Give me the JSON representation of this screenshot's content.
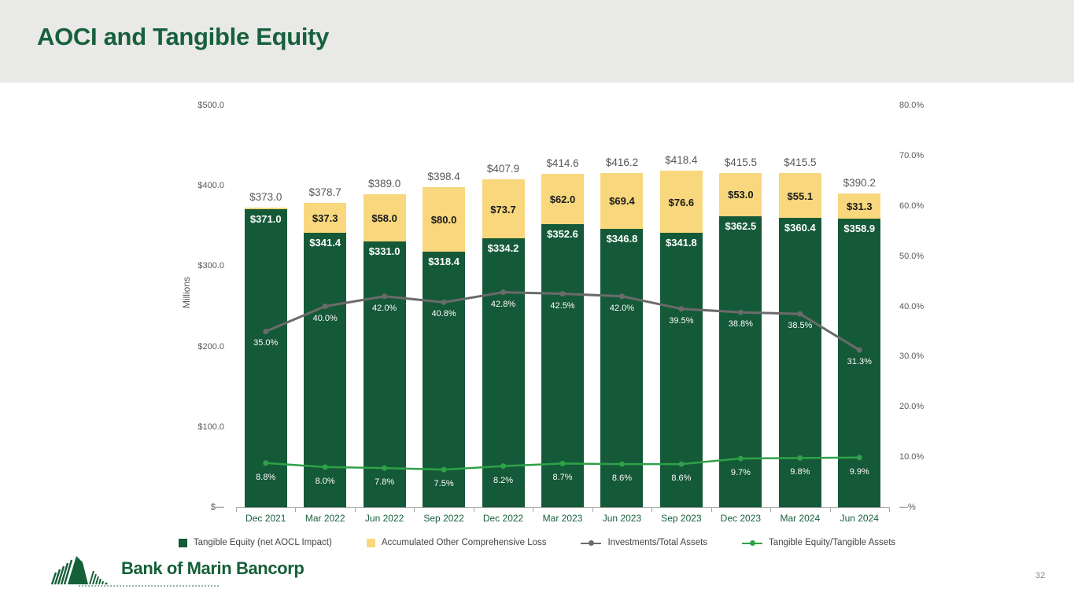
{
  "header": {
    "title": "AOCI and Tangible Equity"
  },
  "footer": {
    "logo_text": "Bank of Marin Bancorp",
    "page_number": "32"
  },
  "colors": {
    "header_bg": "#e9e9e7",
    "title_green": "#17603c",
    "bar_green": "#155a38",
    "bar_yellow": "#f8d77d",
    "line_gray": "#6b6b6b",
    "line_green": "#2fa148",
    "axis_text": "#595959",
    "x_label_green": "#17603c"
  },
  "chart_data": {
    "type": "combo-stacked-bar-with-lines",
    "title": "AOCI and Tangible Equity",
    "categories": [
      "Dec 2021",
      "Mar 2022",
      "Jun 2022",
      "Sep 2022",
      "Dec 2022",
      "Mar 2023",
      "Jun 2023",
      "Sep 2023",
      "Dec 2023",
      "Mar 2024",
      "Jun 2024"
    ],
    "bar_series": [
      {
        "name": "Tangible Equity (net AOCL Impact)",
        "axis": "left",
        "color": "#155a38",
        "label_color": "#ffffff",
        "values": [
          371.0,
          341.4,
          331.0,
          318.4,
          334.2,
          352.6,
          346.8,
          341.8,
          362.5,
          360.4,
          358.9
        ],
        "labels": [
          "$371.0",
          "$341.4",
          "$331.0",
          "$318.4",
          "$334.2",
          "$352.6",
          "$346.8",
          "$341.8",
          "$362.5",
          "$360.4",
          "$358.9"
        ]
      },
      {
        "name": "Accumulated Other Comprehensive Loss",
        "axis": "left",
        "color": "#f8d77d",
        "label_color": "#1a1a1a",
        "values": [
          2.0,
          37.3,
          58.0,
          80.0,
          73.7,
          62.0,
          69.4,
          76.6,
          53.0,
          55.1,
          31.3
        ],
        "labels": [
          "",
          "$37.3",
          "$58.0",
          "$80.0",
          "$73.7",
          "$62.0",
          "$69.4",
          "$76.6",
          "$53.0",
          "$55.1",
          "$31.3"
        ]
      }
    ],
    "totals_labels": [
      "$373.0",
      "$378.7",
      "$389.0",
      "$398.4",
      "$407.9",
      "$414.6",
      "$416.2",
      "$418.4",
      "$415.5",
      "$415.5",
      "$390.2"
    ],
    "line_series": [
      {
        "name": "Investments/Total Assets",
        "axis": "right",
        "color": "#6b6b6b",
        "values": [
          35.0,
          40.0,
          42.0,
          40.8,
          42.8,
          42.5,
          42.0,
          39.5,
          38.8,
          38.5,
          31.3
        ],
        "labels": [
          "35.0%",
          "40.0%",
          "42.0%",
          "40.8%",
          "42.8%",
          "42.5%",
          "42.0%",
          "39.5%",
          "38.8%",
          "38.5%",
          "31.3%"
        ]
      },
      {
        "name": "Tangible Equity/Tangible Assets",
        "axis": "right",
        "color": "#2fa148",
        "values": [
          8.8,
          8.0,
          7.8,
          7.5,
          8.2,
          8.7,
          8.6,
          8.6,
          9.7,
          9.8,
          9.9
        ],
        "labels": [
          "8.8%",
          "8.0%",
          "7.8%",
          "7.5%",
          "8.2%",
          "8.7%",
          "8.6%",
          "8.6%",
          "9.7%",
          "9.8%",
          "9.9%"
        ]
      }
    ],
    "left_axis": {
      "title": "Millions",
      "max": 500,
      "ticks": [
        "$500.0",
        "$400.0",
        "$300.0",
        "$200.0",
        "$100.0",
        "$—"
      ]
    },
    "right_axis": {
      "max": 80,
      "ticks": [
        "80.0%",
        "70.0%",
        "60.0%",
        "50.0%",
        "40.0%",
        "30.0%",
        "20.0%",
        "10.0%",
        "—%"
      ]
    },
    "grid": "off",
    "legend_position": "bottom",
    "legend": [
      {
        "label": "Tangible Equity (net AOCL Impact)",
        "swatch": "square",
        "color": "#155a38"
      },
      {
        "label": "Accumulated Other Comprehensive Loss",
        "swatch": "square",
        "color": "#f8d77d"
      },
      {
        "label": "Investments/Total Assets",
        "swatch": "line-dot",
        "color": "#6b6b6b"
      },
      {
        "label": "Tangible Equity/Tangible Assets",
        "swatch": "line-dot",
        "color": "#2fa148"
      }
    ]
  }
}
